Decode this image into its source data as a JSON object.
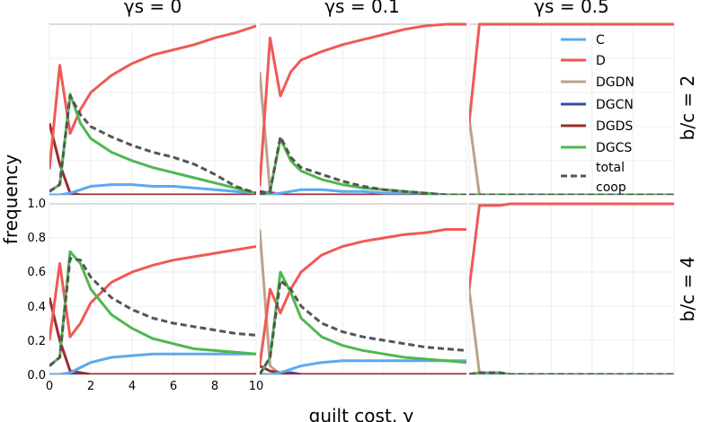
{
  "figure": {
    "ylabel": "frequency",
    "xlabel": "guilt cost, γ",
    "column_titles": [
      "γs = 0",
      "γs = 0.1",
      "γs = 0.5"
    ],
    "row_titles": [
      "b/c = 2",
      "b/c = 4"
    ],
    "y_ticks": [
      "0.0",
      "0.2",
      "0.4",
      "0.6",
      "0.8",
      "1.0"
    ],
    "x_ticks": [
      "0",
      "2",
      "4",
      "6",
      "8",
      "10"
    ]
  },
  "legend": [
    {
      "label": "C",
      "color": "#5aaaf0",
      "dash": false
    },
    {
      "label": "D",
      "color": "#ef5a55",
      "dash": false
    },
    {
      "label": "DGDN",
      "color": "#bba38a",
      "dash": false
    },
    {
      "label": "DGCN",
      "color": "#3a4aa8",
      "dash": false
    },
    {
      "label": "DGDS",
      "color": "#9b2d2d",
      "dash": false
    },
    {
      "label": "DGCS",
      "color": "#4fb84f",
      "dash": false
    },
    {
      "label": "total coop",
      "line1": "total",
      "line2": "coop",
      "color": "#555555",
      "dash": true
    }
  ],
  "chart_data": {
    "type": "line",
    "xlabel": "guilt cost, γ",
    "ylabel": "frequency",
    "xlim": [
      0,
      10
    ],
    "ylim": [
      0,
      1
    ],
    "grid": true,
    "legend_position": "top-right",
    "x": [
      0,
      0.5,
      1,
      1.5,
      2,
      3,
      4,
      5,
      6,
      7,
      8,
      9,
      10
    ],
    "panels": [
      {
        "row": "b/c = 2",
        "col": "γs = 0",
        "series": [
          {
            "name": "C",
            "values": [
              0,
              0,
              0.01,
              0.03,
              0.05,
              0.06,
              0.06,
              0.05,
              0.05,
              0.04,
              0.03,
              0.02,
              0.01
            ]
          },
          {
            "name": "D",
            "values": [
              0.15,
              0.76,
              0.36,
              0.5,
              0.6,
              0.7,
              0.77,
              0.82,
              0.85,
              0.88,
              0.92,
              0.95,
              0.99
            ]
          },
          {
            "name": "DGDN",
            "values": [
              0,
              0,
              0,
              0,
              0,
              0,
              0,
              0,
              0,
              0,
              0,
              0,
              0
            ]
          },
          {
            "name": "DGCN",
            "values": [
              0,
              0,
              0,
              0,
              0,
              0,
              0,
              0,
              0,
              0,
              0,
              0,
              0
            ]
          },
          {
            "name": "DGDS",
            "values": [
              0.42,
              0.18,
              0.01,
              0,
              0,
              0,
              0,
              0,
              0,
              0,
              0,
              0,
              0
            ]
          },
          {
            "name": "DGCS",
            "values": [
              0.02,
              0.06,
              0.59,
              0.42,
              0.33,
              0.25,
              0.2,
              0.16,
              0.13,
              0.1,
              0.07,
              0.04,
              0.01
            ]
          },
          {
            "name": "total coop",
            "values": [
              0.02,
              0.06,
              0.58,
              0.47,
              0.4,
              0.34,
              0.29,
              0.25,
              0.22,
              0.18,
              0.12,
              0.05,
              0.01
            ]
          }
        ]
      },
      {
        "row": "b/c = 2",
        "col": "γs = 0.1",
        "series": [
          {
            "name": "C",
            "values": [
              0,
              0,
              0.01,
              0.02,
              0.03,
              0.03,
              0.02,
              0.02,
              0.01,
              0.01,
              0.01,
              0,
              0
            ]
          },
          {
            "name": "D",
            "values": [
              0.05,
              0.92,
              0.58,
              0.72,
              0.79,
              0.84,
              0.88,
              0.91,
              0.94,
              0.97,
              0.99,
              1,
              1
            ]
          },
          {
            "name": "DGDN",
            "values": [
              0.72,
              0.02,
              0,
              0,
              0,
              0,
              0,
              0,
              0,
              0,
              0,
              0,
              0
            ]
          },
          {
            "name": "DGCN",
            "values": [
              0,
              0,
              0,
              0,
              0,
              0,
              0,
              0,
              0,
              0,
              0,
              0,
              0
            ]
          },
          {
            "name": "DGDS",
            "values": [
              0.02,
              0.01,
              0,
              0,
              0,
              0,
              0,
              0,
              0,
              0,
              0,
              0,
              0
            ]
          },
          {
            "name": "DGCS",
            "values": [
              0,
              0.02,
              0.33,
              0.2,
              0.14,
              0.09,
              0.06,
              0.04,
              0.03,
              0.02,
              0.01,
              0,
              0
            ]
          },
          {
            "name": "total coop",
            "values": [
              0,
              0.02,
              0.34,
              0.22,
              0.16,
              0.12,
              0.08,
              0.05,
              0.03,
              0.02,
              0.01,
              0,
              0
            ]
          }
        ]
      },
      {
        "row": "b/c = 2",
        "col": "γs = 0.5",
        "series": [
          {
            "name": "C",
            "values": [
              0,
              0,
              0,
              0,
              0,
              0,
              0,
              0,
              0,
              0,
              0,
              0,
              0
            ]
          },
          {
            "name": "D",
            "values": [
              0.42,
              1,
              1,
              1,
              1,
              1,
              1,
              1,
              1,
              1,
              1,
              1,
              1
            ]
          },
          {
            "name": "DGDN",
            "values": [
              0.45,
              0,
              0,
              0,
              0,
              0,
              0,
              0,
              0,
              0,
              0,
              0,
              0
            ]
          },
          {
            "name": "DGCN",
            "values": [
              0,
              0,
              0,
              0,
              0,
              0,
              0,
              0,
              0,
              0,
              0,
              0,
              0
            ]
          },
          {
            "name": "DGDS",
            "values": [
              0,
              0,
              0,
              0,
              0,
              0,
              0,
              0,
              0,
              0,
              0,
              0,
              0
            ]
          },
          {
            "name": "DGCS",
            "values": [
              0,
              0,
              0,
              0,
              0,
              0,
              0,
              0,
              0,
              0,
              0,
              0,
              0
            ]
          },
          {
            "name": "total coop",
            "values": [
              0,
              0,
              0,
              0,
              0,
              0,
              0,
              0,
              0,
              0,
              0,
              0,
              0
            ]
          }
        ]
      },
      {
        "row": "b/c = 4",
        "col": "γs = 0",
        "series": [
          {
            "name": "C",
            "values": [
              0,
              0,
              0.01,
              0.04,
              0.07,
              0.1,
              0.11,
              0.12,
              0.12,
              0.12,
              0.12,
              0.12,
              0.12
            ]
          },
          {
            "name": "D",
            "values": [
              0.2,
              0.65,
              0.22,
              0.3,
              0.42,
              0.54,
              0.6,
              0.64,
              0.67,
              0.69,
              0.71,
              0.73,
              0.75
            ]
          },
          {
            "name": "DGDN",
            "values": [
              0,
              0,
              0,
              0,
              0,
              0,
              0,
              0,
              0,
              0,
              0,
              0,
              0
            ]
          },
          {
            "name": "DGCN",
            "values": [
              0,
              0,
              0,
              0,
              0,
              0,
              0,
              0,
              0,
              0,
              0,
              0,
              0
            ]
          },
          {
            "name": "DGDS",
            "values": [
              0.45,
              0.2,
              0.02,
              0.01,
              0,
              0,
              0,
              0,
              0,
              0,
              0,
              0,
              0
            ]
          },
          {
            "name": "DGCS",
            "values": [
              0.05,
              0.1,
              0.72,
              0.65,
              0.5,
              0.35,
              0.27,
              0.21,
              0.18,
              0.15,
              0.14,
              0.13,
              0.12
            ]
          },
          {
            "name": "total coop",
            "values": [
              0.05,
              0.1,
              0.68,
              0.67,
              0.57,
              0.45,
              0.38,
              0.33,
              0.3,
              0.28,
              0.26,
              0.24,
              0.23
            ]
          }
        ]
      },
      {
        "row": "b/c = 4",
        "col": "γs = 0.1",
        "series": [
          {
            "name": "C",
            "values": [
              0,
              0,
              0.01,
              0.03,
              0.05,
              0.07,
              0.08,
              0.08,
              0.08,
              0.08,
              0.08,
              0.08,
              0.08
            ]
          },
          {
            "name": "D",
            "values": [
              0.05,
              0.5,
              0.36,
              0.5,
              0.6,
              0.7,
              0.75,
              0.78,
              0.8,
              0.82,
              0.83,
              0.85,
              0.85
            ]
          },
          {
            "name": "DGDN",
            "values": [
              0.85,
              0.05,
              0,
              0,
              0,
              0,
              0,
              0,
              0,
              0,
              0,
              0,
              0
            ]
          },
          {
            "name": "DGCN",
            "values": [
              0,
              0,
              0,
              0.01,
              0,
              0,
              0,
              0,
              0,
              0,
              0,
              0,
              0
            ]
          },
          {
            "name": "DGDS",
            "values": [
              0.05,
              0.02,
              0.01,
              0,
              0,
              0,
              0,
              0,
              0,
              0,
              0,
              0,
              0
            ]
          },
          {
            "name": "DGCS",
            "values": [
              0,
              0.1,
              0.6,
              0.48,
              0.33,
              0.22,
              0.17,
              0.14,
              0.12,
              0.1,
              0.09,
              0.08,
              0.07
            ]
          },
          {
            "name": "total coop",
            "values": [
              0,
              0.1,
              0.55,
              0.5,
              0.4,
              0.3,
              0.25,
              0.22,
              0.2,
              0.18,
              0.16,
              0.15,
              0.14
            ]
          }
        ]
      },
      {
        "row": "b/c = 4",
        "col": "γs = 0.5",
        "series": [
          {
            "name": "C",
            "values": [
              0,
              0,
              0,
              0,
              0,
              0,
              0,
              0,
              0,
              0,
              0,
              0,
              0
            ]
          },
          {
            "name": "D",
            "values": [
              0.5,
              0.99,
              0.99,
              0.99,
              1,
              1,
              1,
              1,
              1,
              1,
              1,
              1,
              1
            ]
          },
          {
            "name": "DGDN",
            "values": [
              0.5,
              0.01,
              0,
              0,
              0,
              0,
              0,
              0,
              0,
              0,
              0,
              0,
              0
            ]
          },
          {
            "name": "DGCN",
            "values": [
              0,
              0,
              0,
              0,
              0,
              0,
              0,
              0,
              0,
              0,
              0,
              0,
              0
            ]
          },
          {
            "name": "DGDS",
            "values": [
              0,
              0,
              0,
              0,
              0,
              0,
              0,
              0,
              0,
              0,
              0,
              0,
              0
            ]
          },
          {
            "name": "DGCS",
            "values": [
              0,
              0.01,
              0.01,
              0.01,
              0,
              0,
              0,
              0,
              0,
              0,
              0,
              0,
              0
            ]
          },
          {
            "name": "total coop",
            "values": [
              0,
              0.01,
              0.01,
              0.01,
              0,
              0,
              0,
              0,
              0,
              0,
              0,
              0,
              0
            ]
          }
        ]
      }
    ]
  }
}
